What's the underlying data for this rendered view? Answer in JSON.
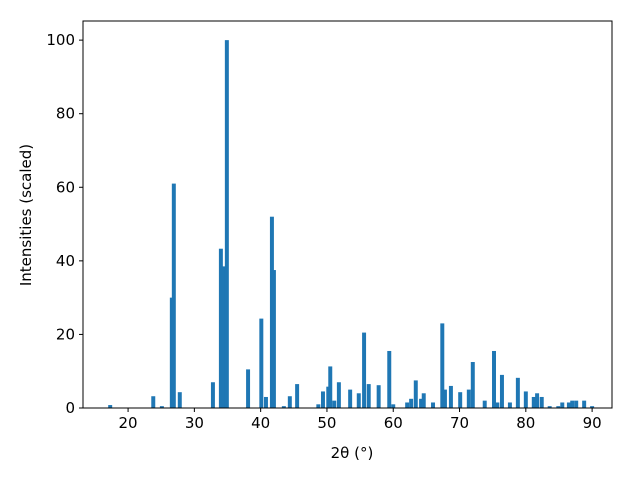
{
  "chart_data": {
    "type": "bar",
    "x_label": "2θ (°)",
    "y_label": "Intensities (scaled)",
    "color": "#1f77b4",
    "bar_width": 0.6,
    "x": [
      17.3,
      23.8,
      25.1,
      26.6,
      26.9,
      27.8,
      32.8,
      34.0,
      34.5,
      34.9,
      38.1,
      40.1,
      40.8,
      41.7,
      42.0,
      43.5,
      44.4,
      45.5,
      48.7,
      49.4,
      50.2,
      50.5,
      51.1,
      51.8,
      53.5,
      54.8,
      55.6,
      56.3,
      57.8,
      59.4,
      60.0,
      62.1,
      62.7,
      63.4,
      64.2,
      64.6,
      66.0,
      67.4,
      67.8,
      68.7,
      70.1,
      71.4,
      72.0,
      73.8,
      75.2,
      75.7,
      76.4,
      77.6,
      78.8,
      80.0,
      81.2,
      81.7,
      82.4,
      83.6,
      84.9,
      85.5,
      86.5,
      87.0,
      87.6,
      88.8,
      90.0
    ],
    "values": [
      0.8,
      3.2,
      0.5,
      30,
      61,
      4.3,
      7,
      43.3,
      38.5,
      100,
      10.5,
      24.3,
      3,
      52,
      37.5,
      0.5,
      3.2,
      6.5,
      1,
      4.5,
      5.8,
      11.3,
      2,
      7,
      5,
      4,
      20.5,
      6.5,
      6.2,
      15.5,
      1,
      1.5,
      2.5,
      7.5,
      2.5,
      4,
      1.5,
      23,
      5,
      6,
      4.3,
      5,
      12.5,
      2,
      15.5,
      1.5,
      9,
      1.5,
      8.2,
      4.5,
      3,
      4,
      3,
      0.5,
      0.5,
      1.5,
      1.5,
      2,
      2,
      2,
      0.5
    ],
    "xlim": [
      13.2,
      93.0
    ],
    "ylim": [
      0,
      105.2
    ],
    "xticks": [
      20,
      30,
      40,
      50,
      60,
      70,
      80,
      90
    ],
    "yticks": [
      0,
      20,
      40,
      60,
      80,
      100
    ]
  }
}
